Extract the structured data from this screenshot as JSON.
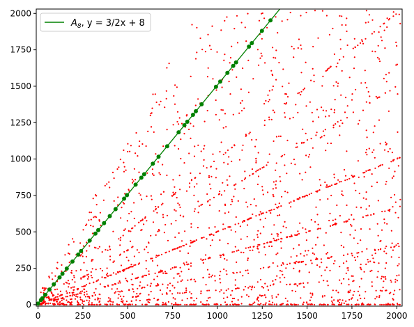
{
  "chart_data": {
    "type": "scatter",
    "xlim": [
      -10,
      2030
    ],
    "ylim": [
      -10,
      2030
    ],
    "x_ticks": [
      0,
      250,
      500,
      750,
      1000,
      1250,
      1500,
      1750,
      2000
    ],
    "y_ticks": [
      0,
      250,
      500,
      750,
      1000,
      1250,
      1500,
      1750,
      2000
    ],
    "x_tick_labels": [
      "0",
      "250",
      "500",
      "750",
      "1000",
      "1250",
      "1500",
      "1750",
      "2000"
    ],
    "y_tick_labels": [
      "0",
      "250",
      "500",
      "750",
      "1000",
      "1250",
      "1500",
      "1750",
      "2000"
    ],
    "grid": false,
    "legend_position": "top-left",
    "legend": [
      {
        "label_parts": [
          "A",
          "8",
          ", y = 3/2x + 8"
        ],
        "color": "#008000",
        "marker": "line"
      }
    ],
    "series": [
      {
        "name": "A8, y = 3/2x + 8",
        "kind": "line",
        "color": "#008000",
        "line": {
          "slope": 1.5,
          "intercept": 8,
          "x_start": 0,
          "x_end": 1350
        },
        "points_x": [
          0,
          16,
          24,
          40,
          64,
          88,
          120,
          136,
          160,
          192,
          224,
          240,
          288,
          320,
          336,
          368,
          400,
          432,
          480,
          496,
          544,
          576,
          592,
          640,
          672,
          720,
          784,
          816,
          832,
          864,
          880,
          912,
          992,
          1016,
          1056,
          1088,
          1104,
          1176,
          1192,
          1248,
          1296
        ]
      },
      {
        "name": "",
        "kind": "scatter",
        "color": "#ff0000",
        "rays": [
          {
            "slope": 0.0,
            "intercept": 0,
            "x_min": 0,
            "x_max": 2020,
            "count": 190
          },
          {
            "slope": 0.5,
            "intercept": 0,
            "x_min": 0,
            "x_max": 2020,
            "count": 200
          },
          {
            "slope": 0.333,
            "intercept": 0,
            "x_min": 0,
            "x_max": 2020,
            "count": 150
          },
          {
            "slope": 0.2,
            "intercept": 0,
            "x_min": 0,
            "x_max": 2020,
            "count": 90
          },
          {
            "slope": 0.1,
            "intercept": 0,
            "x_min": 0,
            "x_max": 2020,
            "count": 60
          },
          {
            "slope": 0.05,
            "intercept": 0,
            "x_min": 0,
            "x_max": 2020,
            "count": 40
          },
          {
            "slope": 1.0,
            "intercept": 0,
            "x_min": 0,
            "x_max": 2000,
            "count": 90
          },
          {
            "slope": 0.75,
            "intercept": 0,
            "x_min": 0,
            "x_max": 2020,
            "count": 70
          }
        ],
        "scatter_region": {
          "x_range": [
            0,
            2020
          ],
          "y_range": [
            0,
            2020
          ],
          "count": 1300,
          "seed": 8
        }
      }
    ]
  }
}
